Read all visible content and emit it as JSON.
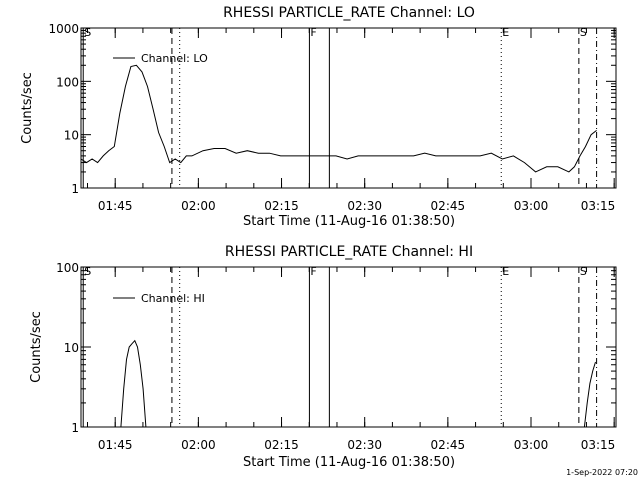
{
  "stamp": "1-Sep-2022 07:20",
  "chart_data": [
    {
      "type": "line",
      "title": "RHESSI PARTICLE_RATE Channel: LO",
      "xlabel": "Start Time (11-Aug-16 01:38:50)",
      "ylabel": "Counts/sec",
      "y_scale": "log",
      "ylim": [
        1,
        1000
      ],
      "y_ticks": [
        {
          "v": 1,
          "label": "1"
        },
        {
          "v": 10,
          "label": "10"
        },
        {
          "v": 100,
          "label": "100"
        },
        {
          "v": 1000,
          "label": "1000"
        }
      ],
      "x_unit": "minutes after 01:38:50",
      "xlim": [
        0,
        96.5
      ],
      "x_ticks": [
        {
          "v": 6.17,
          "label": "01:45"
        },
        {
          "v": 21.17,
          "label": "02:00"
        },
        {
          "v": 36.17,
          "label": "02:15"
        },
        {
          "v": 51.17,
          "label": "02:30"
        },
        {
          "v": 66.17,
          "label": "02:45"
        },
        {
          "v": 81.17,
          "label": "03:00"
        },
        {
          "v": 96.17,
          "label": "03:15"
        }
      ],
      "legend": "Channel: LO",
      "markers": [
        {
          "x": 0.4,
          "style": "solid",
          "label": "S"
        },
        {
          "x": 16.4,
          "style": "dashed",
          "label": ""
        },
        {
          "x": 17.8,
          "style": "dotted",
          "label": ""
        },
        {
          "x": 41.2,
          "style": "solid",
          "label": "F"
        },
        {
          "x": 44.8,
          "style": "solid",
          "label": ""
        },
        {
          "x": 75.8,
          "style": "dotted",
          "label": "E"
        },
        {
          "x": 89.8,
          "style": "dashed",
          "label": "S"
        },
        {
          "x": 93.0,
          "style": "dashdot",
          "label": ""
        }
      ],
      "series": [
        {
          "name": "Channel: LO",
          "x": [
            0,
            1,
            2,
            3,
            4,
            5,
            6,
            7,
            8,
            9,
            10,
            11,
            12,
            13,
            14,
            15,
            16,
            17,
            18,
            19,
            20,
            22,
            24,
            26,
            28,
            30,
            32,
            34,
            36,
            38,
            40,
            42,
            44,
            46,
            48,
            50,
            52,
            54,
            56,
            58,
            60,
            62,
            64,
            66,
            68,
            70,
            72,
            74,
            76,
            78,
            80,
            82,
            84,
            86,
            88,
            89,
            90,
            91,
            92,
            93
          ],
          "y": [
            3.5,
            3,
            3.5,
            3,
            4,
            5,
            6,
            25,
            80,
            190,
            200,
            150,
            80,
            30,
            11,
            6,
            3,
            3.5,
            3,
            4,
            4,
            5,
            5.5,
            5.5,
            4.5,
            5,
            4.5,
            4.5,
            4,
            4,
            4,
            4,
            4,
            4,
            3.5,
            4,
            4,
            4,
            4,
            4,
            4,
            4.5,
            4,
            4,
            4,
            4,
            4,
            4.5,
            3.5,
            4,
            3,
            2,
            2.5,
            2.5,
            2,
            2.5,
            4,
            6,
            10,
            12
          ]
        }
      ]
    },
    {
      "type": "line",
      "title": "RHESSI PARTICLE_RATE Channel: HI",
      "xlabel": "Start Time (11-Aug-16 01:38:50)",
      "ylabel": "Counts/sec",
      "y_scale": "log",
      "ylim": [
        1,
        100
      ],
      "y_ticks": [
        {
          "v": 1,
          "label": "1"
        },
        {
          "v": 10,
          "label": "10"
        },
        {
          "v": 100,
          "label": "100"
        }
      ],
      "x_unit": "minutes after 01:38:50",
      "xlim": [
        0,
        96.5
      ],
      "x_ticks": [
        {
          "v": 6.17,
          "label": "01:45"
        },
        {
          "v": 21.17,
          "label": "02:00"
        },
        {
          "v": 36.17,
          "label": "02:15"
        },
        {
          "v": 51.17,
          "label": "02:30"
        },
        {
          "v": 66.17,
          "label": "02:45"
        },
        {
          "v": 81.17,
          "label": "03:00"
        },
        {
          "v": 96.17,
          "label": "03:15"
        }
      ],
      "legend": "Channel: HI",
      "markers": [
        {
          "x": 0.4,
          "style": "solid",
          "label": "S"
        },
        {
          "x": 16.4,
          "style": "dashed",
          "label": ""
        },
        {
          "x": 17.8,
          "style": "dotted",
          "label": ""
        },
        {
          "x": 41.2,
          "style": "solid",
          "label": "F"
        },
        {
          "x": 44.8,
          "style": "solid",
          "label": ""
        },
        {
          "x": 75.8,
          "style": "dotted",
          "label": "E"
        },
        {
          "x": 89.8,
          "style": "dashed",
          "label": "S"
        },
        {
          "x": 93.0,
          "style": "dashdot",
          "label": ""
        }
      ],
      "series": [
        {
          "name": "Channel: HI",
          "x": [
            7.2,
            7.7,
            8.2,
            8.7,
            9.2,
            9.7,
            10.2,
            10.7,
            11.2,
            11.7
          ],
          "y": [
            1,
            3,
            7,
            10,
            11,
            12,
            10,
            6,
            3,
            1
          ],
          "x2": [
            90.8,
            91.3,
            91.8,
            92.3,
            92.8
          ],
          "y2": [
            1,
            2,
            3.5,
            5,
            6.5
          ]
        }
      ]
    }
  ]
}
